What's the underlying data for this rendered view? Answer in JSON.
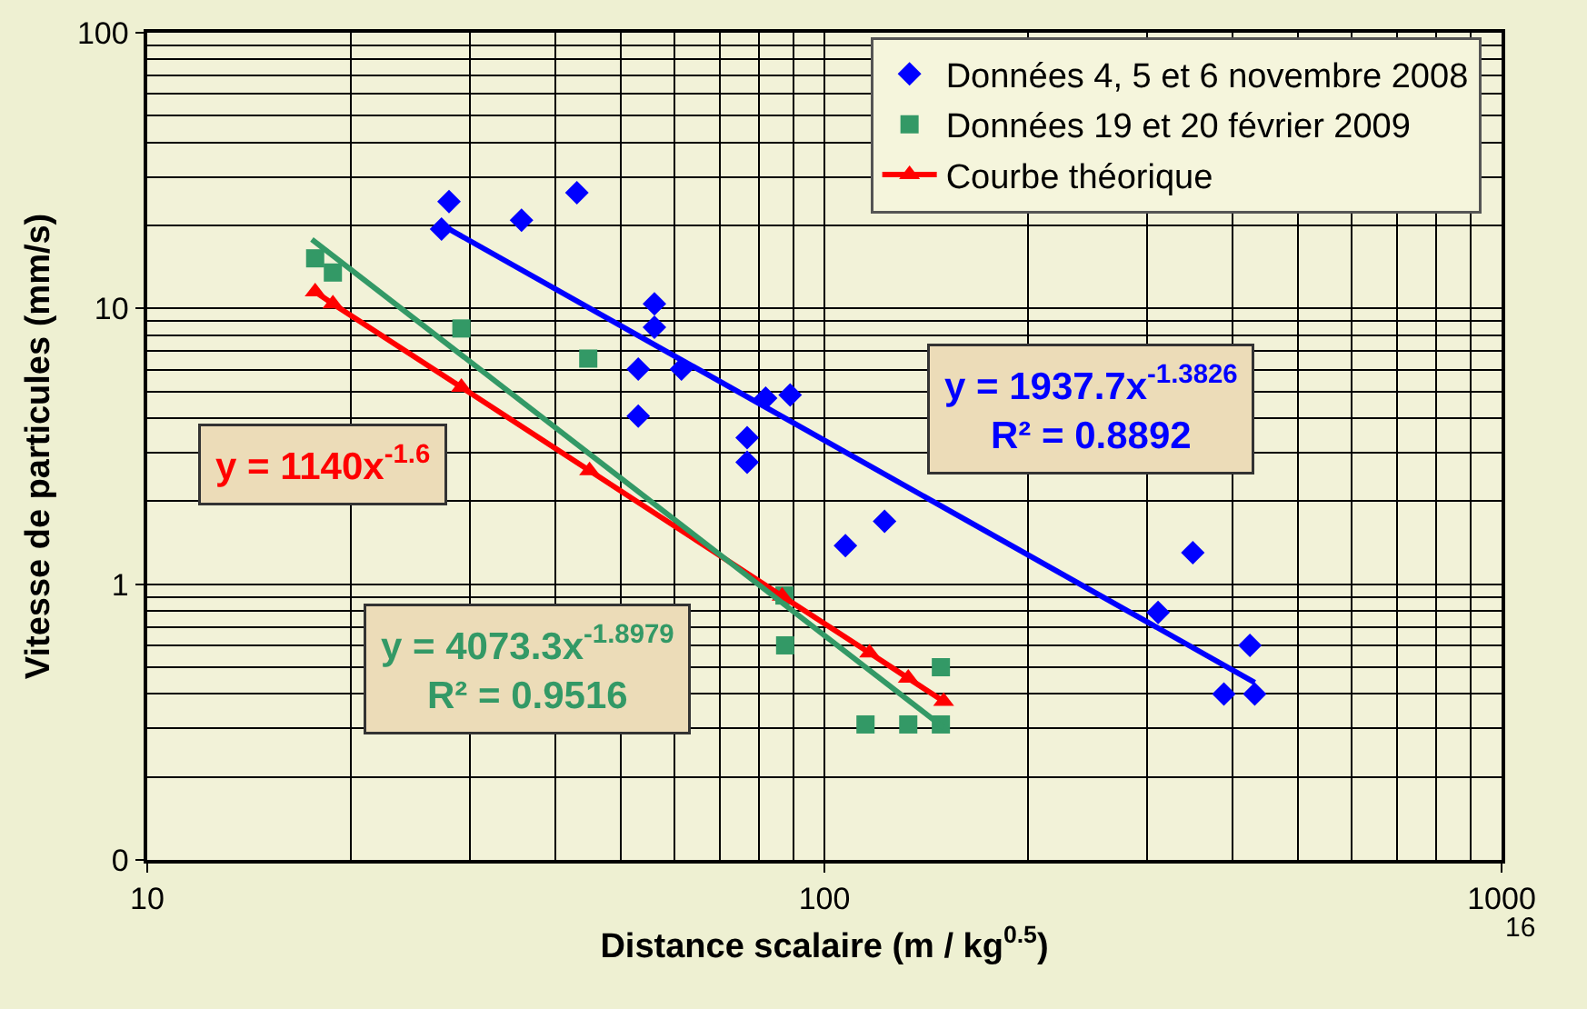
{
  "chart_data": {
    "type": "scatter",
    "xlabel": "Distance scalaire (m / kg$^{0.5}$)",
    "ylabel": "Vitesse de particules (mm/s)",
    "log": "xy",
    "grid": true,
    "legend": "top right",
    "xlim": [
      10,
      1000
    ],
    "xticks": [
      10,
      100,
      1000
    ],
    "ylim": [
      0.1,
      100
    ],
    "yticks": [
      {
        "value": 0.1,
        "label": "0"
      },
      1,
      10,
      100
    ],
    "series": [
      {
        "name": "Données 4, 5 et 6 novembre 2008",
        "marker": "diamond",
        "color": "#0000ff",
        "x": [
          27.9,
          27.2,
          35.7,
          43.1,
          56.1,
          56.1,
          53.1,
          61.5,
          53.1,
          81.9,
          89.0,
          76.9,
          76.9,
          107.4,
          122.7,
          350,
          311,
          425,
          389,
          432
        ],
        "values": [
          24.4,
          19.4,
          20.9,
          26.3,
          10.4,
          8.55,
          6.03,
          6.03,
          4.07,
          4.73,
          4.86,
          3.4,
          2.77,
          1.38,
          1.69,
          1.3,
          0.79,
          0.6,
          0.4,
          0.4
        ]
      },
      {
        "name": "Données 19 et 20 février 2009",
        "marker": "square",
        "color": "#339966",
        "x": [
          17.7,
          18.8,
          29.1,
          44.8,
          87.3,
          87.5,
          148.6,
          115,
          133,
          148.6
        ],
        "values": [
          15.2,
          13.5,
          8.46,
          6.58,
          0.91,
          0.6,
          0.5,
          0.31,
          0.31,
          0.31
        ]
      },
      {
        "name": "Courbe théorique",
        "type": "line",
        "marker": "triangle",
        "line_style": "solid",
        "color": "#ff0000",
        "x": [
          17.7,
          18.8,
          29.1,
          45.0,
          86.6,
          116.6,
          133,
          150
        ],
        "values": [
          11.5,
          10.4,
          5.18,
          2.58,
          0.905,
          0.563,
          0.456,
          0.376
        ]
      },
      {
        "type": "line",
        "marker": "none",
        "line_style": "solid",
        "color": "#0000ff",
        "x": [
          27.2,
          432
        ],
        "values": [
          20.1,
          0.44
        ]
      },
      {
        "type": "line",
        "marker": "none",
        "line_style": "solid",
        "color": "#339966",
        "x": [
          17.5,
          150
        ],
        "values": [
          17.8,
          0.302
        ]
      }
    ],
    "annotations": [
      "y = 1937.7x$^{-1.3826}$\nR² = 0.8892",
      "y = 1140x$^{-1.6}$",
      "y = 4073.3x$^{-1.8979}$\nR² = 0.9516",
      "16"
    ]
  }
}
